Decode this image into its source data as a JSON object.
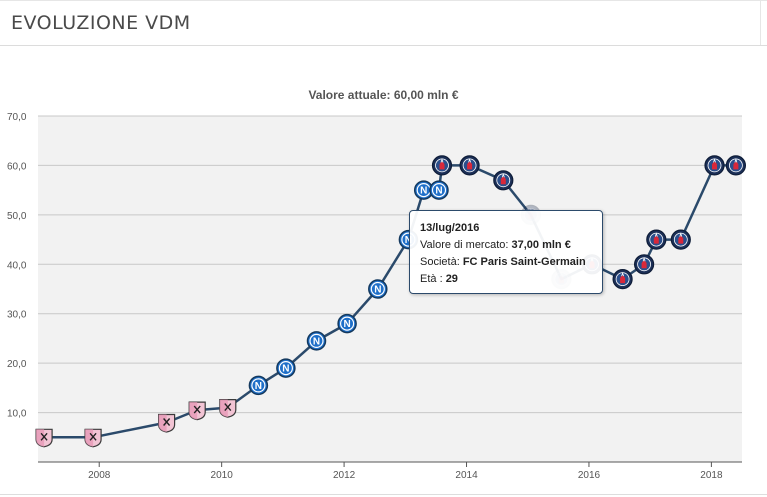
{
  "panel": {
    "title": "EVOLUZIONE VDM"
  },
  "chart_data": {
    "type": "line",
    "title": "Valore attuale: 60,00 mln €",
    "xlabel": "",
    "ylabel": "",
    "xlim": [
      2007.0,
      2018.5
    ],
    "ylim": [
      0,
      70
    ],
    "grid": true,
    "y_ticks": [
      "10,0",
      "20,0",
      "30,0",
      "40,0",
      "50,0",
      "60,0",
      "70,0"
    ],
    "x_ticks": [
      "2008",
      "2010",
      "2012",
      "2014",
      "2016",
      "2018"
    ],
    "series": [
      {
        "color": "#2b4a6b",
        "points": [
          {
            "x": 2007.1,
            "y": 5,
            "club": "Palermo"
          },
          {
            "x": 2007.9,
            "y": 5,
            "club": "Palermo"
          },
          {
            "x": 2009.1,
            "y": 8,
            "club": "Palermo"
          },
          {
            "x": 2009.6,
            "y": 10.5,
            "club": "Palermo"
          },
          {
            "x": 2010.1,
            "y": 11,
            "club": "Palermo"
          },
          {
            "x": 2010.6,
            "y": 15.5,
            "club": "Napoli"
          },
          {
            "x": 2011.05,
            "y": 19,
            "club": "Napoli"
          },
          {
            "x": 2011.55,
            "y": 24.5,
            "club": "Napoli"
          },
          {
            "x": 2012.05,
            "y": 28,
            "club": "Napoli"
          },
          {
            "x": 2012.55,
            "y": 35,
            "club": "Napoli"
          },
          {
            "x": 2013.05,
            "y": 45,
            "club": "Napoli"
          },
          {
            "x": 2013.3,
            "y": 55,
            "club": "Napoli"
          },
          {
            "x": 2013.55,
            "y": 55,
            "club": "Napoli"
          },
          {
            "x": 2013.6,
            "y": 60,
            "club": "PSG"
          },
          {
            "x": 2014.05,
            "y": 60,
            "club": "PSG"
          },
          {
            "x": 2014.6,
            "y": 57,
            "club": "PSG"
          },
          {
            "x": 2015.05,
            "y": 50,
            "club": "PSG"
          },
          {
            "x": 2015.55,
            "y": 37,
            "club": "PSG"
          },
          {
            "x": 2016.05,
            "y": 40,
            "club": "PSG"
          },
          {
            "x": 2016.55,
            "y": 37,
            "club": "PSG"
          },
          {
            "x": 2016.9,
            "y": 40,
            "club": "PSG"
          },
          {
            "x": 2017.1,
            "y": 45,
            "club": "PSG"
          },
          {
            "x": 2017.5,
            "y": 45,
            "club": "PSG"
          },
          {
            "x": 2018.05,
            "y": 60,
            "club": "PSG"
          },
          {
            "x": 2018.4,
            "y": 60,
            "club": "PSG"
          }
        ]
      }
    ],
    "tooltip": {
      "date": "13/lug/2016",
      "market_value_label": "Valore di mercato:",
      "market_value": "37,00 mln €",
      "club_label": "Società:",
      "club": "FC Paris Saint-Germain",
      "age_label": "Età :",
      "age": "29"
    }
  }
}
